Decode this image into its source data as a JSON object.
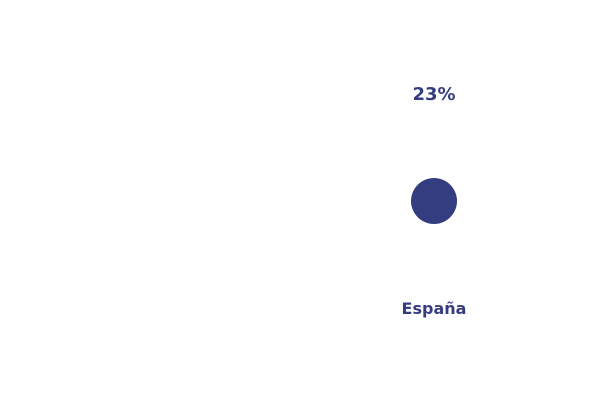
{
  "chart_data": {
    "type": "scatter",
    "categories": [
      "España"
    ],
    "values": [
      23
    ],
    "value_labels": [
      "23%"
    ],
    "color": "#333d7f",
    "grid": false,
    "legend": "none"
  }
}
